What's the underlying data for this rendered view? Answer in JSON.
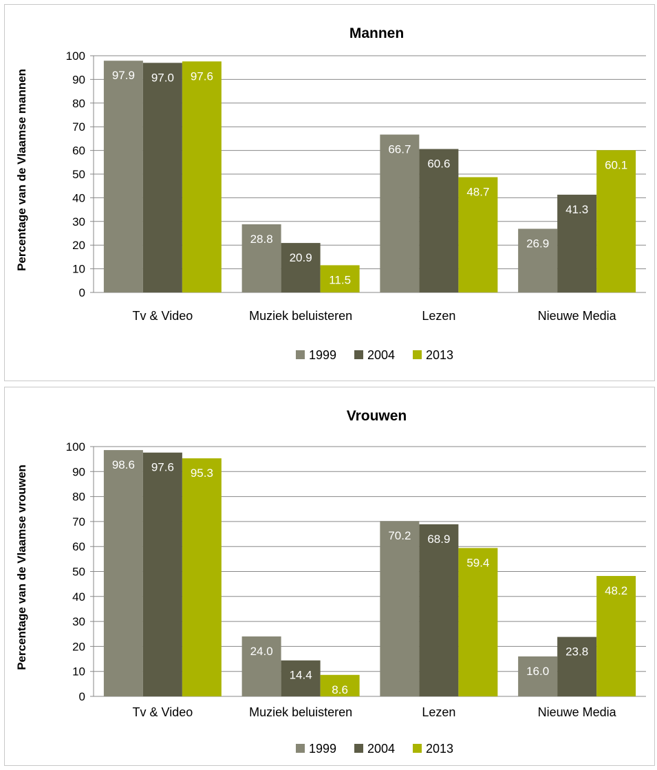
{
  "chart_data": [
    {
      "type": "bar",
      "title": "Mannen",
      "xlabel": "",
      "ylabel": "Percentage van de Vlaamse mannen",
      "categories": [
        "Tv & Video",
        "Muziek beluisteren",
        "Lezen",
        "Nieuwe Media"
      ],
      "series": [
        {
          "name": "1999",
          "color": "#878775",
          "values": [
            97.9,
            28.8,
            66.7,
            26.9
          ]
        },
        {
          "name": "2004",
          "color": "#5c5c46",
          "values": [
            97.0,
            20.9,
            60.6,
            41.3
          ]
        },
        {
          "name": "2013",
          "color": "#aab400",
          "values": [
            97.6,
            11.5,
            48.7,
            60.1
          ]
        }
      ],
      "ylim": [
        0,
        100
      ],
      "yticks": [
        0,
        10,
        20,
        30,
        40,
        50,
        60,
        70,
        80,
        90,
        100
      ],
      "grid": true,
      "legend_position": "bottom"
    },
    {
      "type": "bar",
      "title": "Vrouwen",
      "xlabel": "",
      "ylabel": "Percentage van de Vlaamse vrouwen",
      "categories": [
        "Tv & Video",
        "Muziek beluisteren",
        "Lezen",
        "Nieuwe Media"
      ],
      "series": [
        {
          "name": "1999",
          "color": "#878775",
          "values": [
            98.6,
            24.0,
            70.2,
            16.0
          ]
        },
        {
          "name": "2004",
          "color": "#5c5c46",
          "values": [
            97.6,
            14.4,
            68.9,
            23.8
          ]
        },
        {
          "name": "2013",
          "color": "#aab400",
          "values": [
            95.3,
            8.6,
            59.4,
            48.2
          ]
        }
      ],
      "ylim": [
        0,
        100
      ],
      "yticks": [
        0,
        10,
        20,
        30,
        40,
        50,
        60,
        70,
        80,
        90,
        100
      ],
      "grid": true,
      "legend_position": "bottom"
    }
  ]
}
